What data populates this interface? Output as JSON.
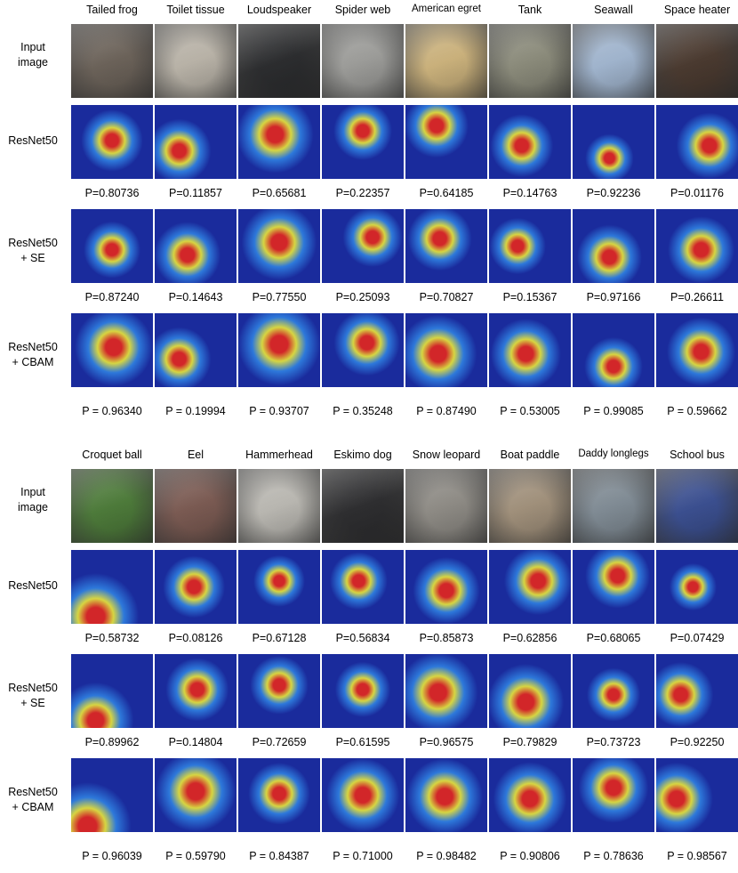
{
  "panels": [
    {
      "classes": [
        "Tailed frog",
        "Toilet tissue",
        "Loudspeaker",
        "Spider web",
        "American egret",
        "Tank",
        "Seawall",
        "Space heater"
      ],
      "rows": [
        {
          "label": "Input\nimage",
          "kind": "input",
          "probs": []
        },
        {
          "label": "ResNet50",
          "kind": "heat",
          "probs": [
            "P=0.80736",
            "P=0.11857",
            "P=0.65681",
            "P=0.22357",
            "P=0.64185",
            "P=0.14763",
            "P=0.92236",
            "P=0.01176"
          ]
        },
        {
          "label": "ResNet50\n+ SE",
          "kind": "heat",
          "probs": [
            "P=0.87240",
            "P=0.14643",
            "P=0.77550",
            "P=0.25093",
            "P=0.70827",
            "P=0.15367",
            "P=0.97166",
            "P=0.26611"
          ]
        },
        {
          "label": "ResNet50\n+ CBAM",
          "kind": "heat",
          "probs": [
            "P = 0.96340",
            "P = 0.19994",
            "P = 0.93707",
            "P = 0.35248",
            "P = 0.87490",
            "P = 0.53005",
            "P = 0.99085",
            "P = 0.59662"
          ]
        }
      ]
    },
    {
      "classes": [
        "Croquet ball",
        "Eel",
        "Hammerhead",
        "Eskimo dog",
        "Snow leopard",
        "Boat paddle",
        "Daddy longlegs",
        "School bus"
      ],
      "rows": [
        {
          "label": "Input\nimage",
          "kind": "input",
          "probs": []
        },
        {
          "label": "ResNet50",
          "kind": "heat",
          "probs": [
            "P=0.58732",
            "P=0.08126",
            "P=0.67128",
            "P=0.56834",
            "P=0.85873",
            "P=0.62856",
            "P=0.68065",
            "P=0.07429"
          ]
        },
        {
          "label": "ResNet50\n+ SE",
          "kind": "heat",
          "probs": [
            "P=0.89962",
            "P=0.14804",
            "P=0.72659",
            "P=0.61595",
            "P=0.96575",
            "P=0.79829",
            "P=0.73723",
            "P=0.92250"
          ]
        },
        {
          "label": "ResNet50\n+ CBAM",
          "kind": "heat",
          "probs": [
            "P = 0.96039",
            "P = 0.59790",
            "P = 0.84387",
            "P = 0.71000",
            "P = 0.98482",
            "P = 0.90806",
            "P = 0.78636",
            "P = 0.98567"
          ]
        }
      ]
    }
  ],
  "photo_colors": [
    [
      "#6b6259",
      "#b7b1a6",
      "#2c2d2f",
      "#9b9b98",
      "#c9b07b",
      "#8a8a7a",
      "#9fb3cc",
      "#4a3a30"
    ],
    [
      "#4d7a3a",
      "#7a5a52",
      "#b8b6b0",
      "#2e2e30",
      "#8d8a84",
      "#9f8f7a",
      "#7f8a93",
      "#3b4f8f"
    ]
  ],
  "heatmap_colors": {
    "cold": "#1a2b9c",
    "cool": "#2f7fe0",
    "warm": "#e7e43a",
    "hot": "#e2261f"
  }
}
